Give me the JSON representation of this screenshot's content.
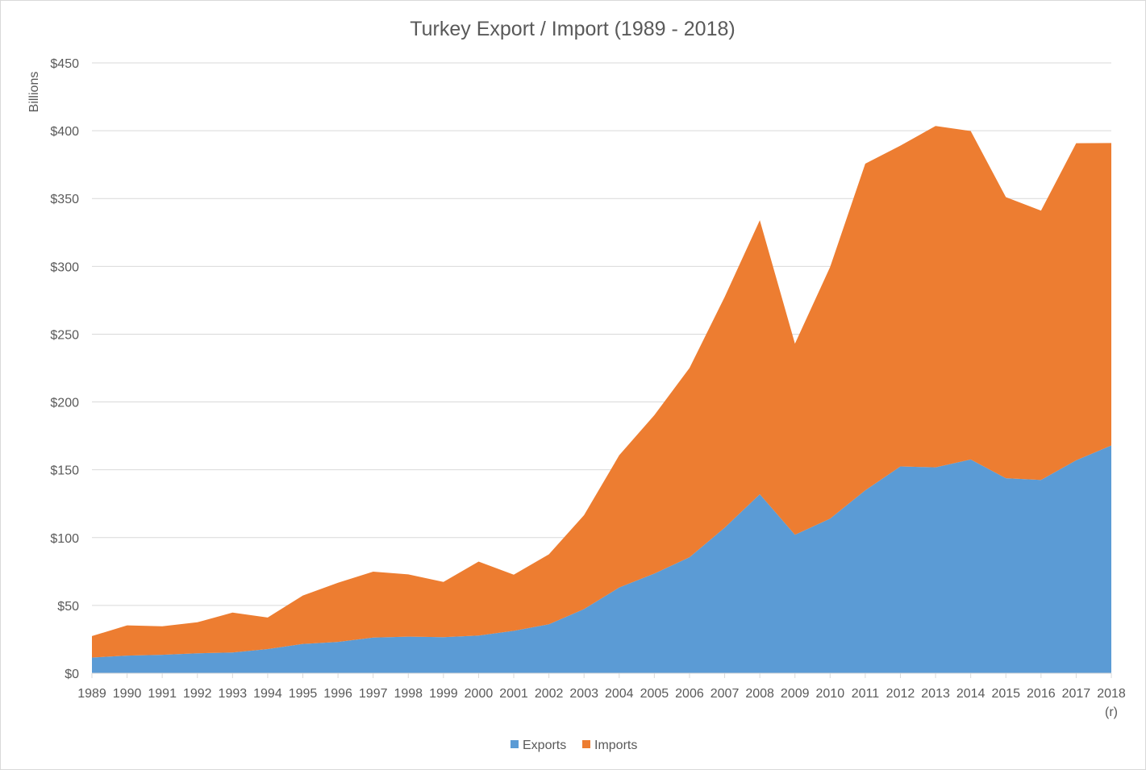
{
  "chart_data": {
    "type": "area",
    "stacked": true,
    "title": "Turkey Export / Import (1989 - 2018)",
    "xlabel": "",
    "ylabel": "Billions",
    "ylim": [
      0,
      450
    ],
    "y_ticks": [
      "$0",
      "$50",
      "$100",
      "$150",
      "$200",
      "$250",
      "$300",
      "$350",
      "$400",
      "$450"
    ],
    "y_tick_values": [
      0,
      50,
      100,
      150,
      200,
      250,
      300,
      350,
      400,
      450
    ],
    "categories": [
      "1989",
      "1990",
      "1991",
      "1992",
      "1993",
      "1994",
      "1995",
      "1996",
      "1997",
      "1998",
      "1999",
      "2000",
      "2001",
      "2002",
      "2003",
      "2004",
      "2005",
      "2006",
      "2007",
      "2008",
      "2009",
      "2010",
      "2011",
      "2012",
      "2013",
      "2014",
      "2015",
      "2016",
      "2017",
      "2018"
    ],
    "category_sublabels": {
      "2018": "(r)"
    },
    "grid": true,
    "legend": "bottom",
    "series": [
      {
        "name": "Exports",
        "color": "#5b9bd5",
        "values": [
          11.6,
          13.0,
          13.6,
          14.7,
          15.3,
          17.8,
          21.6,
          23.1,
          26.3,
          27.0,
          26.6,
          27.8,
          31.3,
          36.1,
          47.3,
          63.2,
          73.5,
          85.5,
          107.3,
          132.0,
          102.1,
          114.0,
          134.9,
          152.5,
          151.8,
          157.6,
          143.8,
          142.5,
          157.0,
          167.9
        ]
      },
      {
        "name": "Imports",
        "color": "#ed7d31",
        "values": [
          15.8,
          22.3,
          21.0,
          22.9,
          29.4,
          23.3,
          35.7,
          43.6,
          48.6,
          45.9,
          40.7,
          54.5,
          41.4,
          51.6,
          69.3,
          97.5,
          116.8,
          139.6,
          170.1,
          202.0,
          140.9,
          185.5,
          240.8,
          236.5,
          251.7,
          242.2,
          207.2,
          198.6,
          233.8,
          223.0
        ]
      }
    ]
  }
}
